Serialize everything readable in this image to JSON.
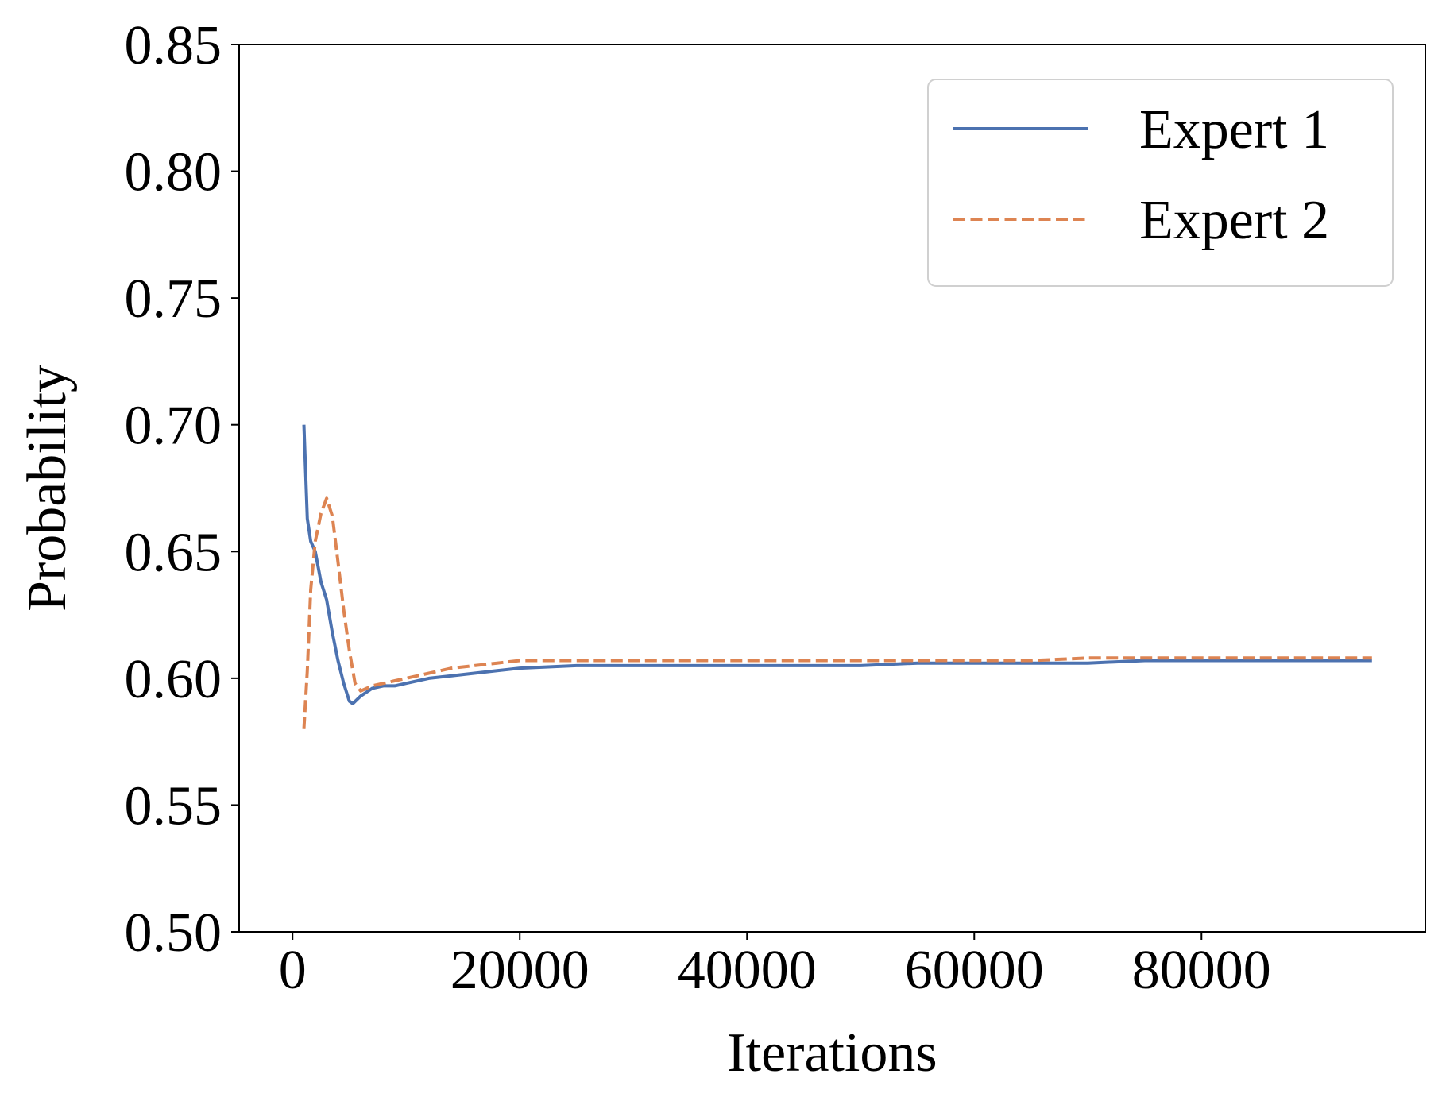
{
  "chart_data": {
    "type": "line",
    "xlabel": "Iterations",
    "ylabel": "Probability",
    "xlim": [
      -4700,
      99700
    ],
    "ylim": [
      0.5,
      0.85
    ],
    "xticks": [
      0,
      20000,
      40000,
      60000,
      80000
    ],
    "xtick_labels": [
      "0",
      "20000",
      "40000",
      "60000",
      "80000"
    ],
    "yticks": [
      0.5,
      0.55,
      0.6,
      0.65,
      0.7,
      0.75,
      0.8,
      0.85
    ],
    "ytick_labels": [
      "0.50",
      "0.55",
      "0.60",
      "0.65",
      "0.70",
      "0.75",
      "0.80",
      "0.85"
    ],
    "grid": false,
    "legend": "top-right",
    "series": [
      {
        "name": "Expert 1",
        "color": "#4c72b0",
        "style": "solid",
        "x": [
          1000,
          1300,
          1600,
          2000,
          2500,
          3000,
          3500,
          4000,
          4500,
          5000,
          5300,
          6000,
          7000,
          8000,
          9000,
          10000,
          12000,
          14000,
          16000,
          18000,
          20000,
          25000,
          30000,
          35000,
          40000,
          45000,
          50000,
          55000,
          60000,
          65000,
          70000,
          75000,
          80000,
          85000,
          90000,
          95000
        ],
        "y": [
          0.7,
          0.663,
          0.654,
          0.65,
          0.638,
          0.631,
          0.618,
          0.607,
          0.598,
          0.591,
          0.59,
          0.593,
          0.596,
          0.597,
          0.597,
          0.598,
          0.6,
          0.601,
          0.602,
          0.603,
          0.604,
          0.605,
          0.605,
          0.605,
          0.605,
          0.605,
          0.605,
          0.606,
          0.606,
          0.606,
          0.606,
          0.607,
          0.607,
          0.607,
          0.607,
          0.607
        ]
      },
      {
        "name": "Expert 2",
        "color": "#dd8452",
        "style": "dashed",
        "x": [
          1000,
          1300,
          1600,
          2000,
          2500,
          3000,
          3500,
          4000,
          4500,
          5000,
          5500,
          6000,
          7000,
          8000,
          9000,
          10000,
          12000,
          14000,
          16000,
          18000,
          20000,
          25000,
          30000,
          35000,
          40000,
          45000,
          50000,
          55000,
          60000,
          65000,
          70000,
          75000,
          80000,
          85000,
          90000,
          95000
        ],
        "y": [
          0.58,
          0.603,
          0.635,
          0.654,
          0.665,
          0.671,
          0.664,
          0.646,
          0.627,
          0.611,
          0.598,
          0.595,
          0.597,
          0.598,
          0.599,
          0.6,
          0.602,
          0.604,
          0.605,
          0.606,
          0.607,
          0.607,
          0.607,
          0.607,
          0.607,
          0.607,
          0.607,
          0.607,
          0.607,
          0.607,
          0.608,
          0.608,
          0.608,
          0.608,
          0.608,
          0.608
        ]
      }
    ]
  }
}
